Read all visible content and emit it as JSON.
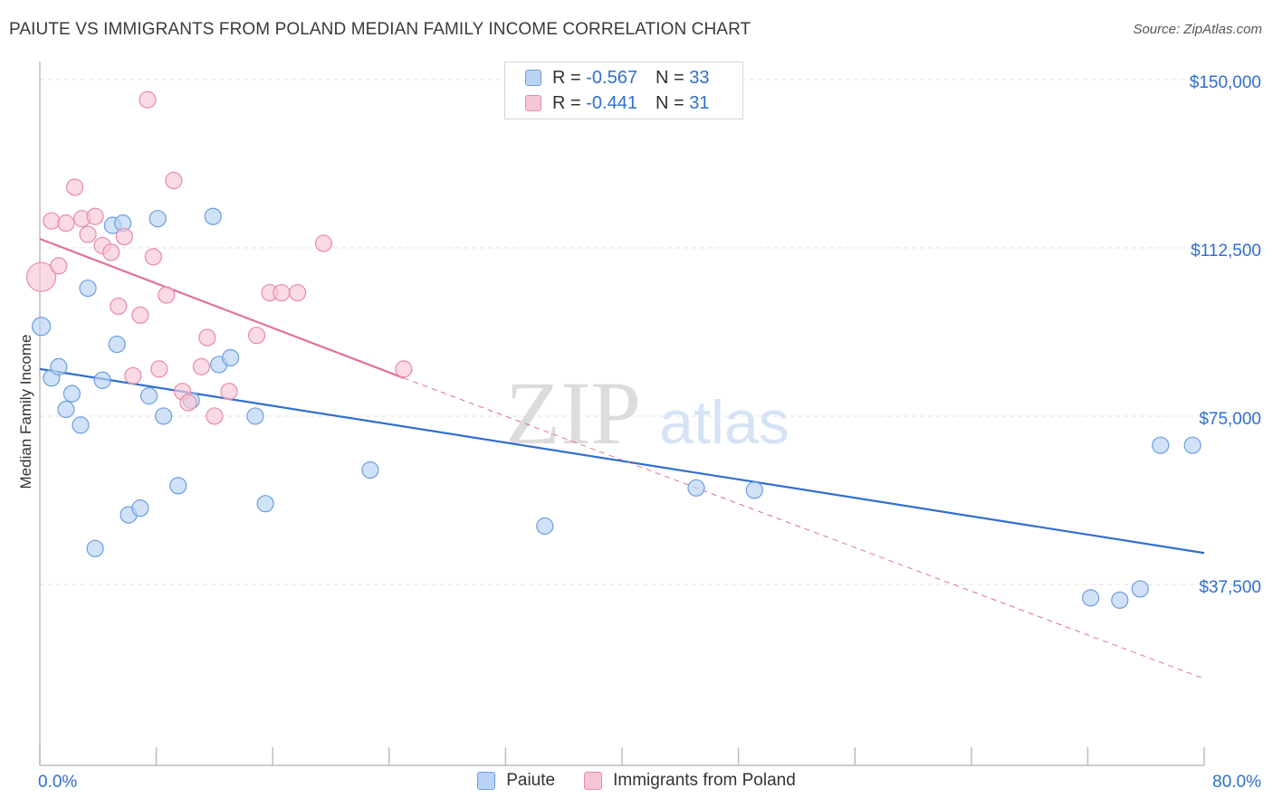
{
  "title": "PAIUTE VS IMMIGRANTS FROM POLAND MEDIAN FAMILY INCOME CORRELATION CHART",
  "source": "Source: ZipAtlas.com",
  "watermark": {
    "zip": "ZIP",
    "atlas": "atlas"
  },
  "legend": {
    "rows": [
      {
        "r_label": "R = ",
        "r_value": "-0.567",
        "n_label": "N = ",
        "n_value": "33"
      },
      {
        "r_label": "R = ",
        "r_value": "-0.441",
        "n_label": "N = ",
        "n_value": "31"
      }
    ]
  },
  "colors": {
    "paiute_fill": "#b9d3f5",
    "paiute_stroke": "#6a9de0",
    "paiute_line": "#2f6fd0",
    "poland_fill": "#f7c6d6",
    "poland_stroke": "#e88aa8",
    "poland_line": "#e0709a",
    "tick_label": "#2f6fd0",
    "grid": "#e2e2e2"
  },
  "chart_data": {
    "type": "scatter",
    "xlabel": "",
    "ylabel": "Median Family Income",
    "xlim": [
      0,
      80
    ],
    "ylim": [
      0,
      152000
    ],
    "x_tick_labels": [
      "0.0%",
      "80.0%"
    ],
    "y_ticks": [
      37500,
      75000,
      112500,
      150000
    ],
    "y_tick_labels": [
      "$37,500",
      "$75,000",
      "$112,500",
      "$150,000"
    ],
    "grid": true,
    "legend_position": "top-center",
    "series": [
      {
        "name": "Paiute",
        "points": [
          [
            0.1,
            95000,
            10
          ],
          [
            0.8,
            83500,
            9
          ],
          [
            1.3,
            86000,
            9
          ],
          [
            1.8,
            76500,
            9
          ],
          [
            2.2,
            80000,
            9
          ],
          [
            2.8,
            73000,
            9
          ],
          [
            3.3,
            103500,
            9
          ],
          [
            3.8,
            45500,
            9
          ],
          [
            4.3,
            83000,
            9
          ],
          [
            5.0,
            117500,
            9
          ],
          [
            5.3,
            91000,
            9
          ],
          [
            5.7,
            118000,
            9
          ],
          [
            6.1,
            53000,
            9
          ],
          [
            6.9,
            54500,
            9
          ],
          [
            7.5,
            79500,
            9
          ],
          [
            8.1,
            119000,
            9
          ],
          [
            8.5,
            75000,
            9
          ],
          [
            9.5,
            59500,
            9
          ],
          [
            10.4,
            78500,
            9
          ],
          [
            11.9,
            119500,
            9
          ],
          [
            12.3,
            86500,
            9
          ],
          [
            13.1,
            88000,
            9
          ],
          [
            14.8,
            75000,
            9
          ],
          [
            15.5,
            55500,
            9
          ],
          [
            22.7,
            63000,
            9
          ],
          [
            34.7,
            50500,
            9
          ],
          [
            45.1,
            59000,
            9
          ],
          [
            49.1,
            58500,
            9
          ],
          [
            72.2,
            34500,
            9
          ],
          [
            74.2,
            34000,
            9
          ],
          [
            75.6,
            36500,
            9
          ],
          [
            77.0,
            68500,
            9
          ],
          [
            79.2,
            68500,
            9
          ]
        ],
        "trend": {
          "x": [
            0,
            80
          ],
          "y": [
            85500,
            44500
          ],
          "dashed_to": null
        }
      },
      {
        "name": "Immigrants from Poland",
        "points": [
          [
            0.1,
            106000,
            16
          ],
          [
            0.8,
            118500,
            9
          ],
          [
            1.3,
            108500,
            9
          ],
          [
            1.8,
            118000,
            9
          ],
          [
            2.4,
            126000,
            9
          ],
          [
            2.9,
            119000,
            9
          ],
          [
            3.3,
            115500,
            9
          ],
          [
            3.8,
            119500,
            9
          ],
          [
            4.3,
            113000,
            9
          ],
          [
            4.9,
            111500,
            9
          ],
          [
            5.4,
            99500,
            9
          ],
          [
            5.8,
            115000,
            9
          ],
          [
            6.4,
            84000,
            9
          ],
          [
            6.9,
            97500,
            9
          ],
          [
            7.4,
            145500,
            9
          ],
          [
            7.8,
            110500,
            9
          ],
          [
            8.2,
            85500,
            9
          ],
          [
            8.7,
            102000,
            9
          ],
          [
            9.2,
            127500,
            9
          ],
          [
            9.8,
            80500,
            9
          ],
          [
            10.2,
            78000,
            9
          ],
          [
            11.1,
            86000,
            9
          ],
          [
            11.5,
            92500,
            9
          ],
          [
            12.0,
            75000,
            9
          ],
          [
            13.0,
            80500,
            9
          ],
          [
            14.9,
            93000,
            9
          ],
          [
            15.8,
            102500,
            9
          ],
          [
            16.6,
            102500,
            9
          ],
          [
            17.7,
            102500,
            9
          ],
          [
            19.5,
            113500,
            9
          ],
          [
            25.0,
            85500,
            9
          ]
        ],
        "trend": {
          "x": [
            0,
            25
          ],
          "y": [
            114500,
            83500
          ],
          "dashed_to": [
            80,
            16500
          ]
        }
      }
    ]
  }
}
